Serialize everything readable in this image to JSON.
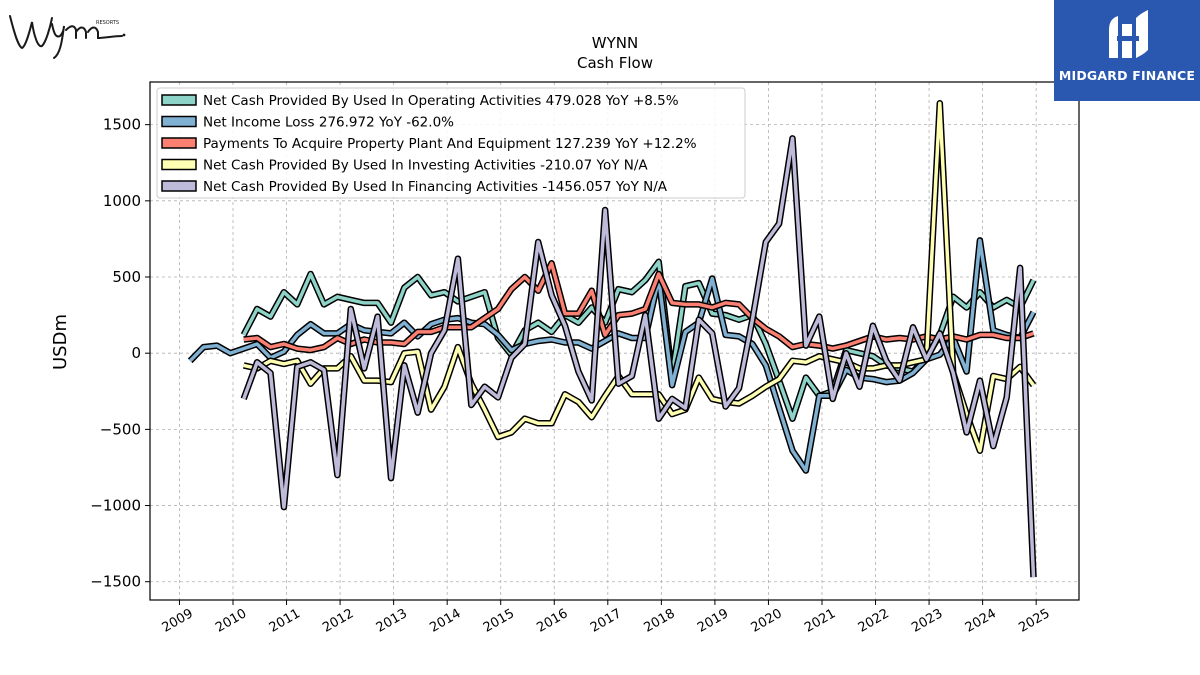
{
  "brand": {
    "logo_left_text": "Wynn",
    "logo_left_small": "RESORTS",
    "logo_right_text": "MIDGARD FINANCE",
    "logo_right_color": "#2a58b0"
  },
  "chart_data": {
    "type": "line",
    "title": "WYNN",
    "subtitle": "Cash Flow",
    "xlabel": "",
    "ylabel": "USDm",
    "xlim": [
      2008.45,
      2025.8
    ],
    "ylim": [
      -1620,
      1780
    ],
    "x_ticks": [
      2009,
      2010,
      2011,
      2012,
      2013,
      2014,
      2015,
      2016,
      2017,
      2018,
      2019,
      2020,
      2021,
      2022,
      2023,
      2024,
      2025
    ],
    "x_tick_labels": [
      "2009",
      "2010",
      "2011",
      "2012",
      "2013",
      "2014",
      "2015",
      "2016",
      "2017",
      "2018",
      "2019",
      "2020",
      "2021",
      "2022",
      "2023",
      "2024",
      "2025"
    ],
    "y_ticks": [
      -1500,
      -1000,
      -500,
      0,
      500,
      1000,
      1500
    ],
    "y_tick_labels": [
      "−1500",
      "−1000",
      "−500",
      "0",
      "500",
      "1000",
      "1500"
    ],
    "grid": true,
    "legend_position": "top-left",
    "series": [
      {
        "name": "Net Cash Provided By Used In Operating Activities",
        "legend_label": "Net Cash Provided By Used In Operating Activities  479.028 YoY +8.5%",
        "color": "#8dd3c7",
        "x": [
          2010.2,
          2010.45,
          2010.7,
          2010.95,
          2011.2,
          2011.45,
          2011.7,
          2011.95,
          2012.2,
          2012.45,
          2012.7,
          2012.95,
          2013.2,
          2013.45,
          2013.7,
          2013.95,
          2014.2,
          2014.45,
          2014.7,
          2014.95,
          2015.2,
          2015.45,
          2015.7,
          2015.95,
          2016.2,
          2016.45,
          2016.7,
          2016.95,
          2017.2,
          2017.45,
          2017.7,
          2017.95,
          2018.2,
          2018.45,
          2018.7,
          2018.95,
          2019.2,
          2019.45,
          2019.7,
          2019.95,
          2020.2,
          2020.45,
          2020.7,
          2020.95,
          2021.2,
          2021.45,
          2021.7,
          2021.95,
          2022.2,
          2022.45,
          2022.7,
          2022.95,
          2023.2,
          2023.45,
          2023.7,
          2023.95,
          2024.2,
          2024.45,
          2024.7,
          2024.95
        ],
        "y": [
          120,
          290,
          240,
          400,
          320,
          520,
          320,
          370,
          350,
          330,
          330,
          200,
          430,
          500,
          380,
          400,
          340,
          370,
          400,
          100,
          -10,
          150,
          200,
          140,
          250,
          200,
          300,
          200,
          420,
          400,
          480,
          600,
          -150,
          440,
          460,
          260,
          250,
          220,
          250,
          60,
          -180,
          -430,
          -160,
          -280,
          -250,
          20,
          0,
          -20,
          -80,
          -100,
          -120,
          -30,
          120,
          370,
          300,
          400,
          300,
          350,
          300,
          480
        ]
      },
      {
        "name": "Net Income Loss",
        "legend_label": "Net Income Loss  276.972 YoY -62.0%",
        "color": "#80b1d3",
        "x": [
          2009.2,
          2009.45,
          2009.7,
          2009.95,
          2010.2,
          2010.45,
          2010.7,
          2010.95,
          2011.2,
          2011.45,
          2011.7,
          2011.95,
          2012.2,
          2012.45,
          2012.7,
          2012.95,
          2013.2,
          2013.45,
          2013.7,
          2013.95,
          2014.2,
          2014.45,
          2014.7,
          2014.95,
          2015.2,
          2015.45,
          2015.7,
          2015.95,
          2016.2,
          2016.45,
          2016.7,
          2016.95,
          2017.2,
          2017.45,
          2017.7,
          2017.95,
          2018.2,
          2018.45,
          2018.7,
          2018.95,
          2019.2,
          2019.45,
          2019.7,
          2019.95,
          2020.2,
          2020.45,
          2020.7,
          2020.95,
          2021.2,
          2021.45,
          2021.7,
          2021.95,
          2022.2,
          2022.45,
          2022.7,
          2022.95,
          2023.2,
          2023.45,
          2023.7,
          2023.95,
          2024.2,
          2024.45,
          2024.7,
          2024.95
        ],
        "y": [
          -50,
          40,
          50,
          0,
          30,
          60,
          -30,
          10,
          120,
          190,
          130,
          130,
          190,
          150,
          140,
          130,
          200,
          110,
          190,
          220,
          230,
          200,
          190,
          120,
          20,
          60,
          80,
          90,
          70,
          70,
          30,
          80,
          130,
          100,
          100,
          490,
          -210,
          140,
          200,
          490,
          120,
          110,
          60,
          -80,
          -360,
          -640,
          -770,
          -280,
          -280,
          -110,
          -160,
          -170,
          -190,
          -180,
          -130,
          -40,
          -10,
          100,
          -120,
          740,
          150,
          120,
          100,
          270
        ]
      },
      {
        "name": "Payments To Acquire Property Plant And Equipment",
        "legend_label": "Payments To Acquire Property Plant And Equipment  127.239 YoY +12.2%",
        "color": "#fb8072",
        "x": [
          2010.2,
          2010.45,
          2010.7,
          2010.95,
          2011.2,
          2011.45,
          2011.7,
          2011.95,
          2012.2,
          2012.45,
          2012.7,
          2012.95,
          2013.2,
          2013.45,
          2013.7,
          2013.95,
          2014.2,
          2014.45,
          2014.7,
          2014.95,
          2015.2,
          2015.45,
          2015.7,
          2015.95,
          2016.2,
          2016.45,
          2016.7,
          2016.95,
          2017.2,
          2017.45,
          2017.7,
          2017.95,
          2018.2,
          2018.45,
          2018.7,
          2018.95,
          2019.2,
          2019.45,
          2019.7,
          2019.95,
          2020.2,
          2020.45,
          2020.7,
          2020.95,
          2021.2,
          2021.45,
          2021.7,
          2021.95,
          2022.2,
          2022.45,
          2022.7,
          2022.95,
          2023.2,
          2023.45,
          2023.7,
          2023.95,
          2024.2,
          2024.45,
          2024.7,
          2024.95
        ],
        "y": [
          90,
          100,
          40,
          60,
          30,
          20,
          40,
          100,
          60,
          90,
          70,
          70,
          60,
          140,
          140,
          170,
          170,
          170,
          230,
          290,
          420,
          500,
          410,
          590,
          260,
          260,
          410,
          120,
          250,
          260,
          290,
          520,
          330,
          320,
          320,
          300,
          330,
          320,
          230,
          160,
          110,
          40,
          60,
          50,
          30,
          50,
          80,
          110,
          90,
          100,
          90,
          110,
          90,
          110,
          90,
          120,
          120,
          100,
          100,
          130
        ]
      },
      {
        "name": "Net Cash Provided By Used In Investing Activities",
        "legend_label": "Net Cash Provided By Used In Investing Activities  -210.07 YoY N/A",
        "color": "#ffffb3",
        "x": [
          2010.2,
          2010.45,
          2010.7,
          2010.95,
          2011.2,
          2011.45,
          2011.7,
          2011.95,
          2012.2,
          2012.45,
          2012.7,
          2012.95,
          2013.2,
          2013.45,
          2013.7,
          2013.95,
          2014.2,
          2014.45,
          2014.7,
          2014.95,
          2015.2,
          2015.45,
          2015.7,
          2015.95,
          2016.2,
          2016.45,
          2016.7,
          2016.95,
          2017.2,
          2017.45,
          2017.7,
          2017.95,
          2018.2,
          2018.45,
          2018.7,
          2018.95,
          2019.2,
          2019.45,
          2019.7,
          2019.95,
          2020.2,
          2020.45,
          2020.7,
          2020.95,
          2021.2,
          2021.45,
          2021.7,
          2021.95,
          2022.2,
          2022.45,
          2022.7,
          2022.95,
          2023.2,
          2023.45,
          2023.7,
          2023.95,
          2024.2,
          2024.45,
          2024.7,
          2024.95
        ],
        "y": [
          -80,
          -100,
          -50,
          -70,
          -50,
          -200,
          -100,
          -100,
          -20,
          -180,
          -180,
          -190,
          0,
          10,
          -370,
          -220,
          40,
          -200,
          -370,
          -550,
          -520,
          -430,
          -460,
          -460,
          -270,
          -320,
          -420,
          -280,
          -150,
          -270,
          -270,
          -270,
          -400,
          -370,
          -160,
          -300,
          -320,
          -330,
          -280,
          -220,
          -170,
          -50,
          -60,
          -20,
          -40,
          -60,
          -100,
          -100,
          -80,
          -80,
          -60,
          -40,
          1640,
          -130,
          -400,
          -640,
          -150,
          -170,
          -90,
          -210
        ]
      },
      {
        "name": "Net Cash Provided By Used In Financing Activities",
        "legend_label": "Net Cash Provided By Used In Financing Activities  -1456.057 YoY N/A",
        "color": "#bebada",
        "x": [
          2010.2,
          2010.45,
          2010.7,
          2010.95,
          2011.2,
          2011.45,
          2011.7,
          2011.95,
          2012.2,
          2012.45,
          2012.7,
          2012.95,
          2013.2,
          2013.45,
          2013.7,
          2013.95,
          2014.2,
          2014.45,
          2014.7,
          2014.95,
          2015.2,
          2015.45,
          2015.7,
          2015.95,
          2016.2,
          2016.45,
          2016.7,
          2016.95,
          2017.2,
          2017.45,
          2017.7,
          2017.95,
          2018.2,
          2018.45,
          2018.7,
          2018.95,
          2019.2,
          2019.45,
          2019.7,
          2019.95,
          2020.2,
          2020.45,
          2020.7,
          2020.95,
          2021.2,
          2021.45,
          2021.7,
          2021.95,
          2022.2,
          2022.45,
          2022.7,
          2022.95,
          2023.2,
          2023.45,
          2023.7,
          2023.95,
          2024.2,
          2024.45,
          2024.7,
          2024.95
        ],
        "y": [
          -300,
          -60,
          -130,
          -1010,
          -90,
          -60,
          -110,
          -800,
          290,
          -100,
          240,
          -820,
          -80,
          -390,
          0,
          150,
          620,
          -340,
          -220,
          -290,
          -30,
          60,
          730,
          380,
          180,
          -120,
          -310,
          940,
          -200,
          -150,
          250,
          -430,
          -300,
          -360,
          220,
          130,
          -350,
          -230,
          220,
          730,
          850,
          1410,
          50,
          240,
          -300,
          0,
          -220,
          180,
          -50,
          -180,
          170,
          -40,
          130,
          -130,
          -520,
          -180,
          -610,
          -290,
          560,
          -1470
        ]
      }
    ]
  }
}
